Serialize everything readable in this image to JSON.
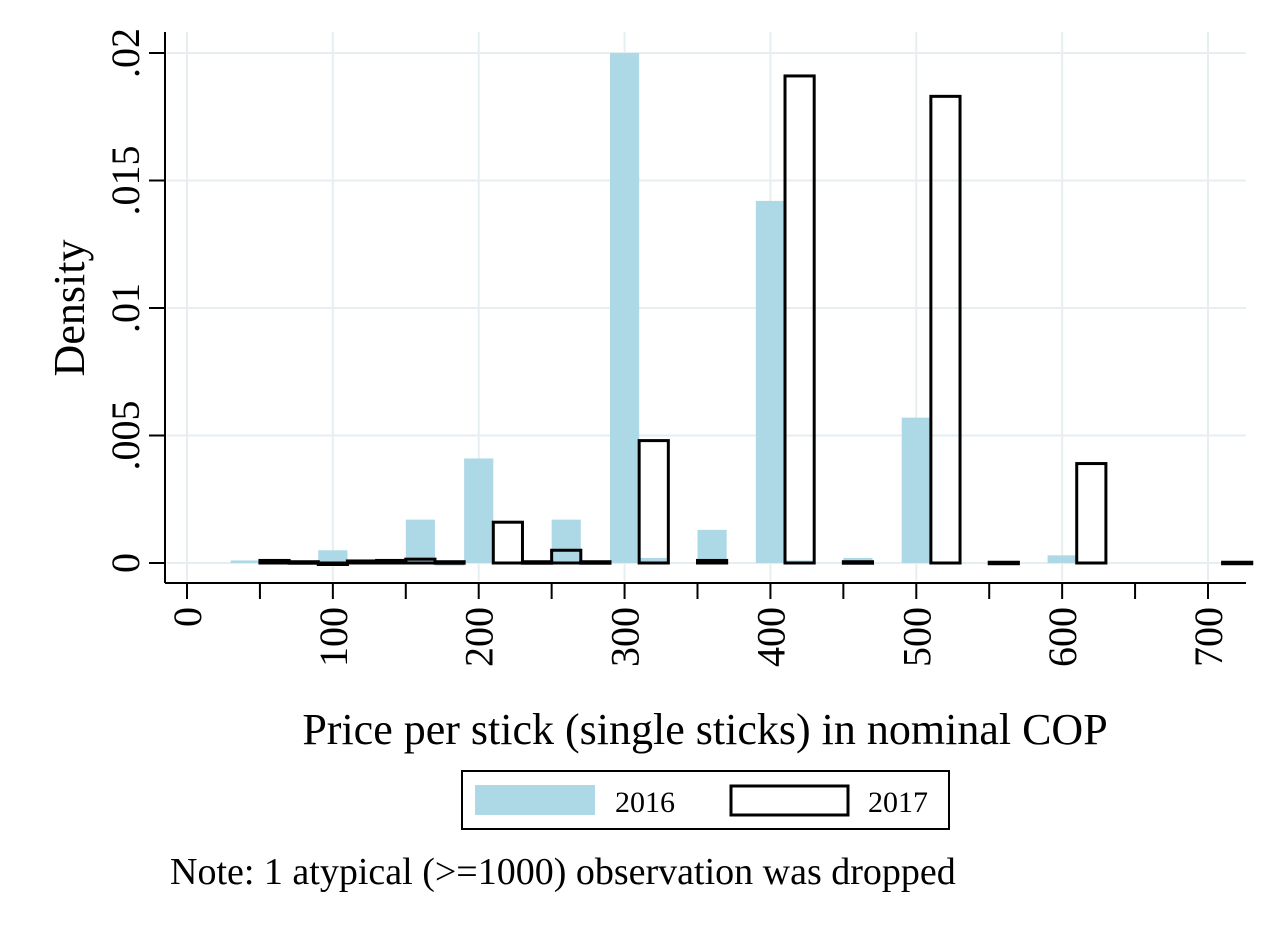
{
  "chart_data": {
    "type": "bar",
    "xlabel": "Price per stick (single sticks) in nominal COP",
    "ylabel": "Density",
    "xlim": [
      0,
      700
    ],
    "ylim": [
      0,
      0.02
    ],
    "x_ticks": [
      0,
      100,
      200,
      300,
      400,
      500,
      600,
      700
    ],
    "x_tick_labels": [
      "0",
      "100",
      "200",
      "300",
      "400",
      "500",
      "600",
      "700"
    ],
    "y_ticks": [
      0,
      0.005,
      0.01,
      0.015,
      0.02
    ],
    "y_tick_labels": [
      "0",
      ".005",
      ".01",
      ".015",
      ".02"
    ],
    "grid": true,
    "legend_position": "bottom",
    "note": "Note: 1 atypical (>=1000) observation was dropped",
    "colors": {
      "series_2016": "#add8e6",
      "series_2017_edge": "#000000",
      "grid": "#e6eef2"
    },
    "series": [
      {
        "name": "2016",
        "style": "filled",
        "bars": [
          {
            "x0": 30,
            "x1": 50,
            "y": 0.0001
          },
          {
            "x0": 90,
            "x1": 110,
            "y": 0.0005
          },
          {
            "x0": 150,
            "x1": 170,
            "y": 0.0017
          },
          {
            "x0": 170,
            "x1": 190,
            "y": -0.0001
          },
          {
            "x0": 190,
            "x1": 210,
            "y": 0.0041
          },
          {
            "x0": 250,
            "x1": 270,
            "y": 0.0017
          },
          {
            "x0": 290,
            "x1": 310,
            "y": 0.02
          },
          {
            "x0": 310,
            "x1": 330,
            "y": 0.0002
          },
          {
            "x0": 350,
            "x1": 370,
            "y": 0.0013
          },
          {
            "x0": 390,
            "x1": 410,
            "y": 0.0142
          },
          {
            "x0": 410,
            "x1": 430,
            "y": 0.0001
          },
          {
            "x0": 450,
            "x1": 470,
            "y": 0.0002
          },
          {
            "x0": 490,
            "x1": 510,
            "y": 0.0057
          },
          {
            "x0": 590,
            "x1": 610,
            "y": 0.0003
          }
        ]
      },
      {
        "name": "2017",
        "style": "outline",
        "bars": [
          {
            "x0": 50,
            "x1": 70,
            "y": 0.0001
          },
          {
            "x0": 70,
            "x1": 90,
            "y": 5e-05
          },
          {
            "x0": 90,
            "x1": 110,
            "y": -5e-05
          },
          {
            "x0": 110,
            "x1": 130,
            "y": 8e-05
          },
          {
            "x0": 130,
            "x1": 150,
            "y": 0.0001
          },
          {
            "x0": 150,
            "x1": 170,
            "y": 0.00015
          },
          {
            "x0": 170,
            "x1": 190,
            "y": 5e-05
          },
          {
            "x0": 210,
            "x1": 230,
            "y": 0.0016
          },
          {
            "x0": 230,
            "x1": 250,
            "y": 5e-05
          },
          {
            "x0": 250,
            "x1": 270,
            "y": 0.0005
          },
          {
            "x0": 270,
            "x1": 290,
            "y": 5e-05
          },
          {
            "x0": 310,
            "x1": 330,
            "y": 0.0048
          },
          {
            "x0": 350,
            "x1": 370,
            "y": 0.0001
          },
          {
            "x0": 410,
            "x1": 430,
            "y": 0.0191
          },
          {
            "x0": 450,
            "x1": 470,
            "y": 5e-05
          },
          {
            "x0": 510,
            "x1": 530,
            "y": 0.0183
          },
          {
            "x0": 550,
            "x1": 570,
            "y": 3e-05
          },
          {
            "x0": 610,
            "x1": 630,
            "y": 0.0039
          },
          {
            "x0": 710,
            "x1": 730,
            "y": 3e-05
          }
        ]
      }
    ]
  }
}
